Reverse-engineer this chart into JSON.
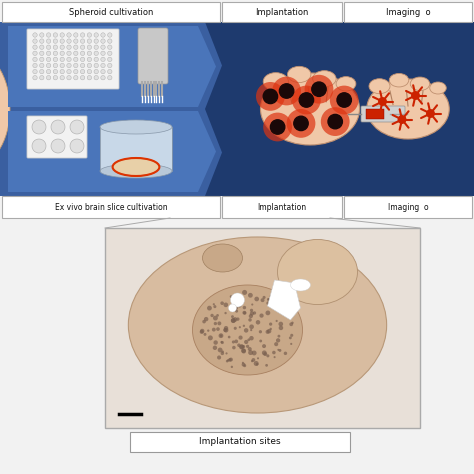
{
  "bg_color": "#f0f0f0",
  "top_panel_bg": "#1e3a6e",
  "top_panel_light": "#3a5fa0",
  "brain_fill": "#f0c8a8",
  "brain_stroke": "#c89868",
  "dark_spot_color": "#1a0808",
  "red_color": "#cc2200",
  "text_color": "#111111",
  "labels_top": [
    "Spheroid cultivation",
    "Implantation",
    "Imaging  o"
  ],
  "labels_bottom": [
    "Ex vivo brain slice cultivation",
    "Implantation",
    "Imaging  o"
  ],
  "bottom_caption": "Implantation sites",
  "arrow_band_outer": "#3a5fa0",
  "arrow_band_inner": "#4a75ba",
  "plate96_fill": "#f0f0f0",
  "plate6_fill": "#f0f0f0",
  "well_fill": "#d0d0d0",
  "pipette_fill": "#c8c8c8",
  "dish_fill": "#c8d8e8",
  "dish_rim": "#dd3300",
  "slice_fill": "#e8d0b0",
  "syringe_fill": "#d0d0d0"
}
